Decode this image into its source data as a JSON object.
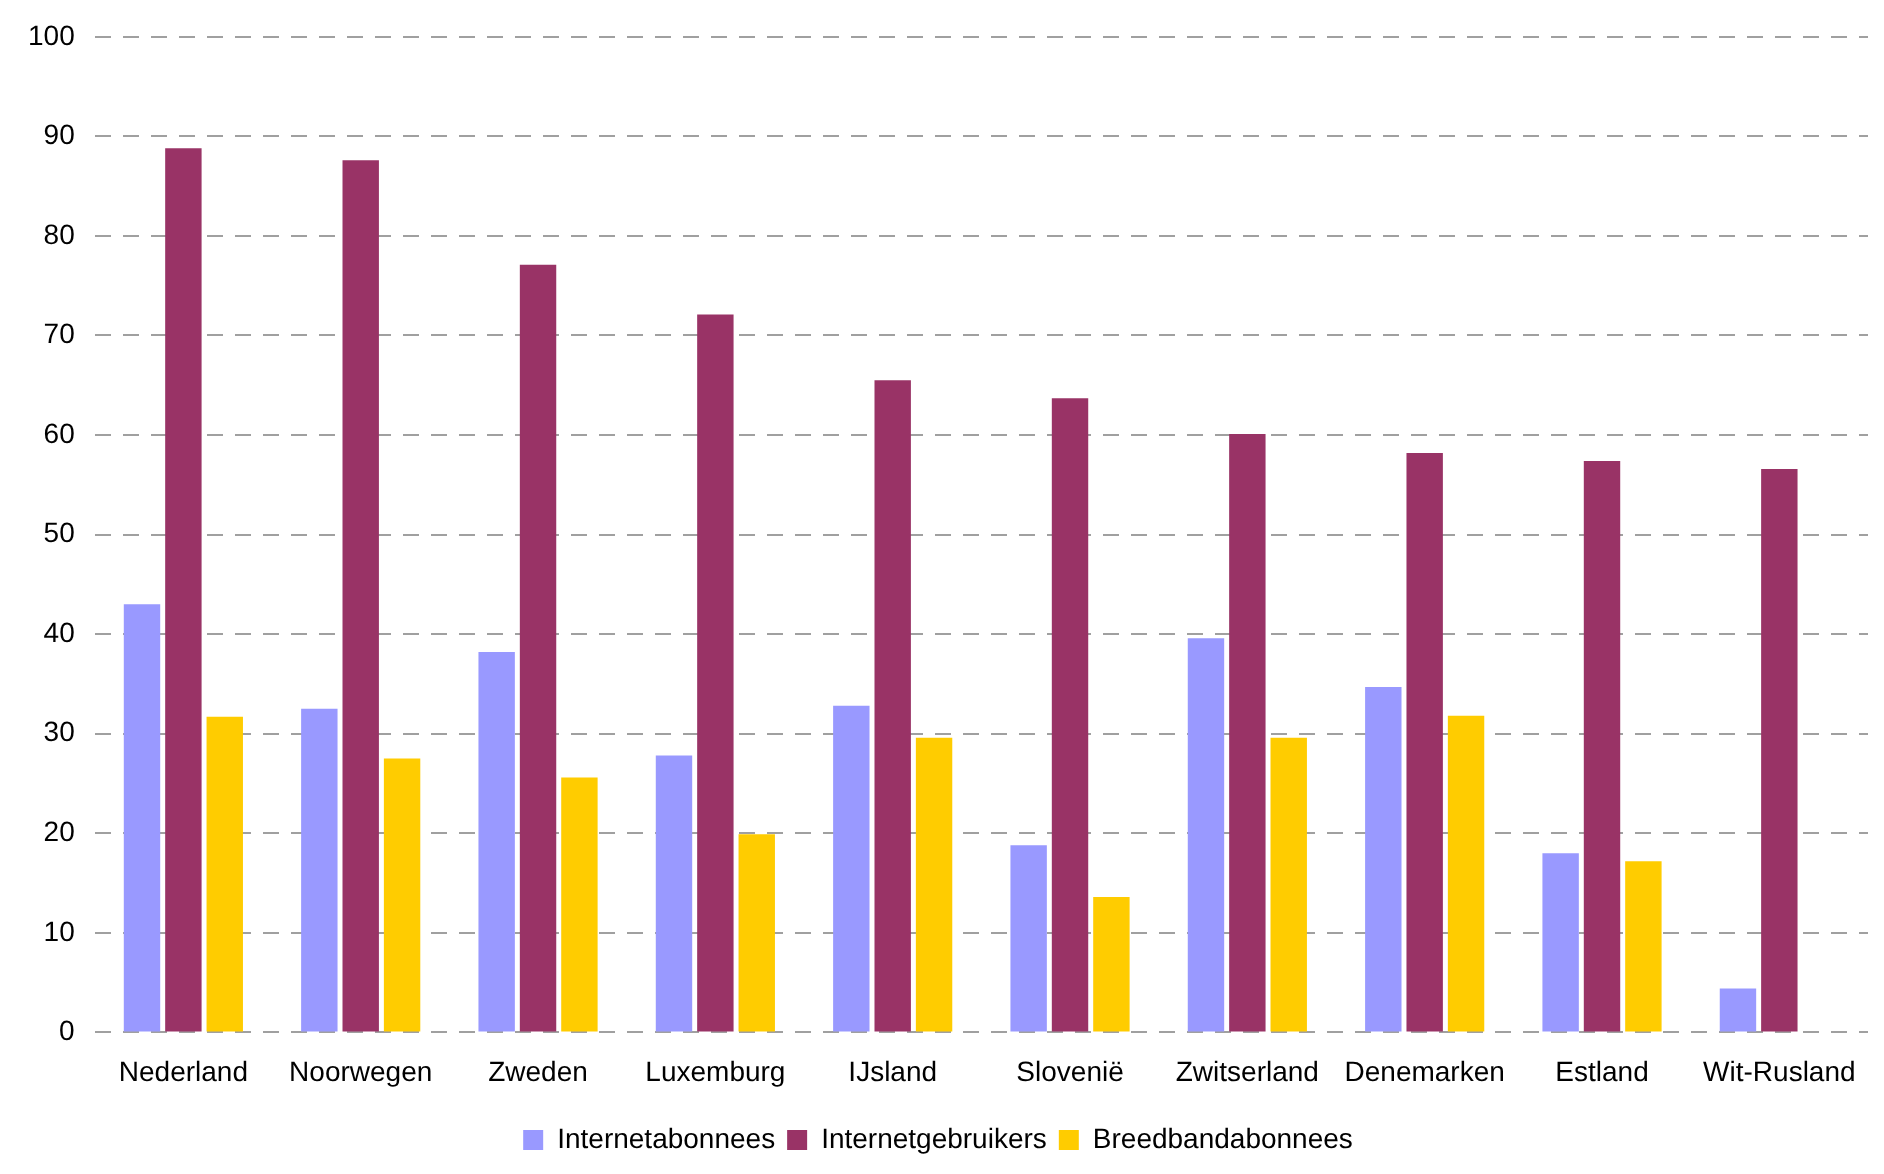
{
  "chart_data": {
    "type": "bar",
    "categories": [
      "Nederland",
      "Noorwegen",
      "Zweden",
      "Luxemburg",
      "IJsland",
      "Slovenië",
      "Zwitserland",
      "Denemarken",
      "Estland",
      "Wit-Rusland"
    ],
    "series": [
      {
        "name": "Internetabonnees",
        "color": "#9999ff",
        "values": [
          43.0,
          32.5,
          38.2,
          27.8,
          32.8,
          18.8,
          39.6,
          34.7,
          18.0,
          4.4
        ]
      },
      {
        "name": "Internetgebruikers",
        "color": "#993366",
        "values": [
          88.8,
          87.6,
          77.1,
          72.1,
          65.5,
          63.7,
          60.1,
          58.2,
          57.4,
          56.6
        ]
      },
      {
        "name": "Breedbandabonnees",
        "color": "#ffcc00",
        "values": [
          31.7,
          27.5,
          25.6,
          19.9,
          29.6,
          13.6,
          29.6,
          31.8,
          17.2,
          null
        ]
      }
    ],
    "ylim": [
      0,
      100
    ],
    "yticks": [
      0,
      10,
      20,
      30,
      40,
      50,
      60,
      70,
      80,
      90,
      100
    ],
    "grid": "y",
    "legend": "bottom"
  }
}
